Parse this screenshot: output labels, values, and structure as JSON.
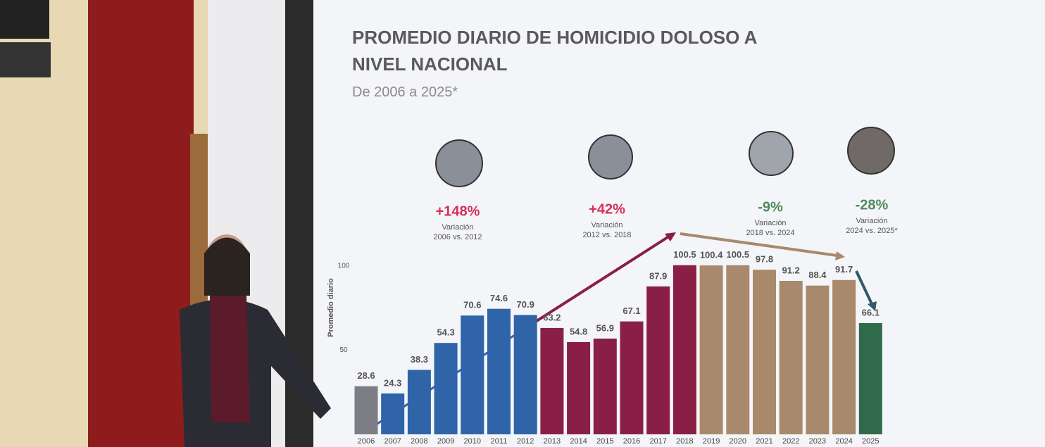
{
  "chart_data": {
    "type": "bar",
    "title": "PROMEDIO DIARIO DE HOMICIDIO DOLOSO A NIVEL NACIONAL",
    "subtitle": "De 2006 a 2025*",
    "y_label": "Promedio diario",
    "categories": [
      "2006",
      "2007",
      "2008",
      "2009",
      "2010",
      "2011",
      "2012",
      "2013",
      "2014",
      "2015",
      "2016",
      "2017",
      "2018",
      "2019",
      "2020",
      "2021",
      "2022",
      "2023",
      "2024",
      "2025"
    ],
    "values": [
      28.6,
      24.3,
      38.3,
      54.3,
      70.6,
      74.6,
      70.9,
      63.2,
      54.8,
      56.9,
      67.1,
      87.9,
      100.5,
      100.4,
      100.5,
      97.8,
      91.2,
      88.4,
      91.7,
      66.1
    ],
    "colors": [
      "#7d7d85",
      "#2f64a8",
      "#2f64a8",
      "#2f64a8",
      "#2f64a8",
      "#2f64a8",
      "#2f64a8",
      "#8a1f45",
      "#8a1f45",
      "#8a1f45",
      "#8a1f45",
      "#8a1f45",
      "#8a1f45",
      "#a8896c",
      "#a8896c",
      "#a8896c",
      "#a8896c",
      "#a8896c",
      "#a8896c",
      "#2f6b4a"
    ],
    "ylim": [
      0,
      105
    ],
    "yticks": [
      50,
      100
    ],
    "annotations": [
      {
        "text": "+148%",
        "label": "Variación",
        "period": "2006 vs. 2012",
        "color": "#d6305a"
      },
      {
        "text": "+42%",
        "label": "Variación",
        "period": "2012 vs. 2018",
        "color": "#d6305a"
      },
      {
        "text": "-9%",
        "label": "Variación",
        "period": "2018 vs. 2024",
        "color": "#4f8a5e"
      },
      {
        "text": "-28%",
        "label": "Variación",
        "period": "2024 vs. 2025*",
        "color": "#4f8a5e"
      }
    ]
  }
}
